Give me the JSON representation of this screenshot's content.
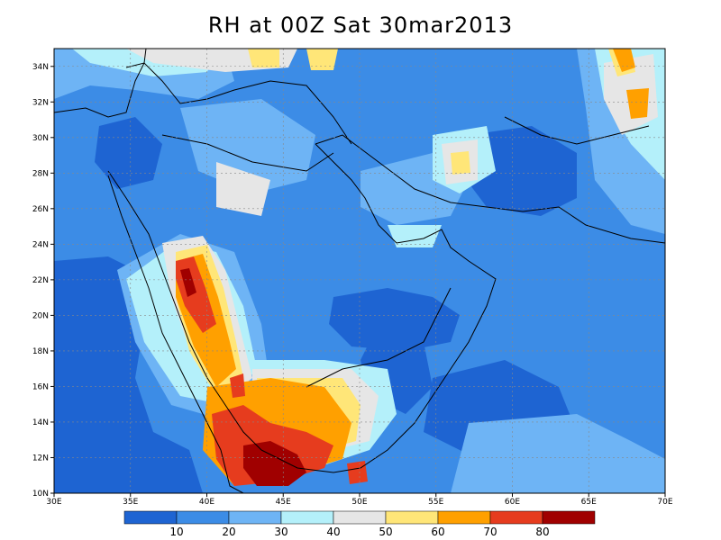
{
  "title": "RH at 00Z Sat 30mar2013",
  "colors": {
    "c0": "#1e64d2",
    "c1": "#3c8ce6",
    "c2": "#6eb4f5",
    "c3": "#b4f0fa",
    "c4": "#e6e6e6",
    "c5": "#ffe678",
    "c6": "#ffa000",
    "c7": "#e63c1e",
    "c8": "#a00000",
    "frame": "#000000",
    "border": "#000000",
    "grid": "#888888"
  },
  "map": {
    "lon_range": [
      30,
      70
    ],
    "lat_range": [
      10,
      35
    ],
    "lon_ticks": [
      "30E",
      "35E",
      "40E",
      "45E",
      "50E",
      "55E",
      "60E",
      "65E",
      "70E"
    ],
    "lat_ticks": [
      "10N",
      "12N",
      "14N",
      "16N",
      "18N",
      "20N",
      "22N",
      "24N",
      "26N",
      "28N",
      "30N",
      "32N",
      "34N"
    ],
    "lon_values": [
      30,
      35,
      40,
      45,
      50,
      55,
      60,
      65,
      70
    ],
    "lat_values": [
      10,
      12,
      14,
      16,
      18,
      20,
      22,
      24,
      26,
      28,
      30,
      32,
      34
    ]
  },
  "colorbar": {
    "labels": [
      "10",
      "20",
      "30",
      "40",
      "50",
      "60",
      "70",
      "80"
    ]
  }
}
